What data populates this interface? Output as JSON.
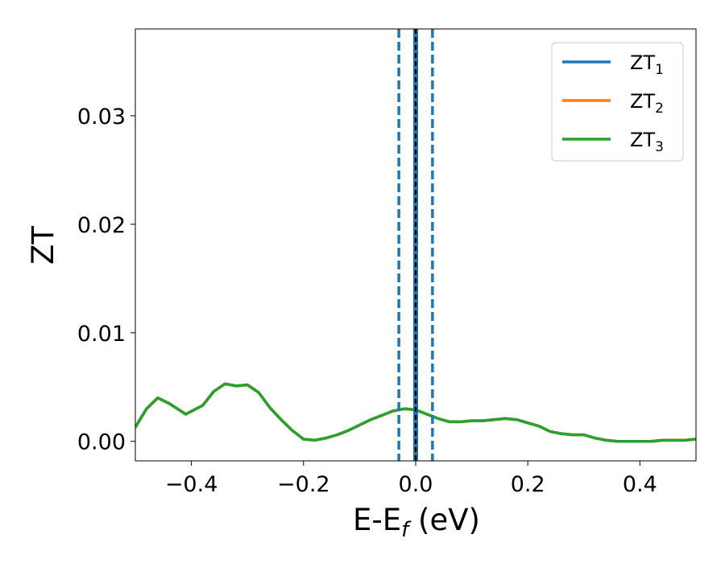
{
  "chart_data": {
    "type": "line",
    "title": "",
    "xlabel": {
      "main": "E-E",
      "sub": "f",
      "unit": " (eV)"
    },
    "ylabel": "ZT",
    "xlim": [
      -0.5,
      0.5
    ],
    "ylim": [
      -0.0018,
      0.038
    ],
    "xticks": [
      {
        "value": -0.4,
        "label": "−0.4"
      },
      {
        "value": -0.2,
        "label": "−0.2"
      },
      {
        "value": 0.0,
        "label": "0.0"
      },
      {
        "value": 0.2,
        "label": "0.2"
      },
      {
        "value": 0.4,
        "label": "0.4"
      }
    ],
    "yticks": [
      {
        "value": 0.0,
        "label": "0.00"
      },
      {
        "value": 0.01,
        "label": "0.01"
      },
      {
        "value": 0.02,
        "label": "0.02"
      },
      {
        "value": 0.03,
        "label": "0.03"
      }
    ],
    "grid": false,
    "legend_position": "top-right",
    "legend": [
      {
        "base": "ZT",
        "sub": "1",
        "color": "#1f77b4"
      },
      {
        "base": "ZT",
        "sub": "2",
        "color": "#ff7f0e"
      },
      {
        "base": "ZT",
        "sub": "3",
        "color": "#2ca02c"
      }
    ],
    "x": [
      -0.5,
      -0.48,
      -0.46,
      -0.44,
      -0.41,
      -0.38,
      -0.36,
      -0.34,
      -0.32,
      -0.3,
      -0.28,
      -0.26,
      -0.24,
      -0.22,
      -0.2,
      -0.18,
      -0.16,
      -0.14,
      -0.12,
      -0.1,
      -0.08,
      -0.06,
      -0.04,
      -0.02,
      0.0,
      0.02,
      0.04,
      0.06,
      0.08,
      0.1,
      0.12,
      0.14,
      0.16,
      0.18,
      0.2,
      0.22,
      0.24,
      0.26,
      0.28,
      0.3,
      0.32,
      0.34,
      0.36,
      0.38,
      0.4,
      0.42,
      0.44,
      0.46,
      0.48,
      0.5
    ],
    "series": [
      {
        "name": "ZT₁",
        "color": "#1f77b4",
        "values": [
          0.0013,
          0.003,
          0.004,
          0.0035,
          0.0025,
          0.0033,
          0.0046,
          0.0053,
          0.0051,
          0.0052,
          0.0045,
          0.0031,
          0.002,
          0.001,
          0.0002,
          0.0001,
          0.0003,
          0.0006,
          0.001,
          0.0015,
          0.002,
          0.0024,
          0.0028,
          0.003,
          0.0029,
          0.0025,
          0.0021,
          0.0018,
          0.0018,
          0.0019,
          0.0019,
          0.002,
          0.0021,
          0.002,
          0.0017,
          0.0014,
          0.0009,
          0.0007,
          0.0006,
          0.0006,
          0.0003,
          0.0001,
          0.0,
          0.0,
          0.0,
          0.0,
          0.0001,
          0.0001,
          0.0001,
          0.0002
        ]
      },
      {
        "name": "ZT₂",
        "color": "#ff7f0e",
        "values": [
          0.0013,
          0.003,
          0.004,
          0.0035,
          0.0025,
          0.0033,
          0.0046,
          0.0053,
          0.0051,
          0.0052,
          0.0045,
          0.0031,
          0.002,
          0.001,
          0.0002,
          0.0001,
          0.0003,
          0.0006,
          0.001,
          0.0015,
          0.002,
          0.0024,
          0.0028,
          0.003,
          0.0029,
          0.0025,
          0.0021,
          0.0018,
          0.0018,
          0.0019,
          0.0019,
          0.002,
          0.0021,
          0.002,
          0.0017,
          0.0014,
          0.0009,
          0.0007,
          0.0006,
          0.0006,
          0.0003,
          0.0001,
          0.0,
          0.0,
          0.0,
          0.0,
          0.0001,
          0.0001,
          0.0001,
          0.0002
        ]
      },
      {
        "name": "ZT₃",
        "color": "#2ca02c",
        "values": [
          0.0013,
          0.003,
          0.004,
          0.0035,
          0.0025,
          0.0033,
          0.0046,
          0.0053,
          0.0051,
          0.0052,
          0.0045,
          0.0031,
          0.002,
          0.001,
          0.0002,
          0.0001,
          0.0003,
          0.0006,
          0.001,
          0.0015,
          0.002,
          0.0024,
          0.0028,
          0.003,
          0.0029,
          0.0025,
          0.0021,
          0.0018,
          0.0018,
          0.0019,
          0.0019,
          0.002,
          0.0021,
          0.002,
          0.0017,
          0.0014,
          0.0009,
          0.0007,
          0.0006,
          0.0006,
          0.0003,
          0.0001,
          0.0,
          0.0,
          0.0,
          0.0,
          0.0001,
          0.0001,
          0.0001,
          0.0002
        ]
      }
    ],
    "vlines": [
      {
        "x": -0.03,
        "style": "dashed",
        "color": "#1f77b4"
      },
      {
        "x": 0.03,
        "style": "dashed",
        "color": "#1f77b4"
      },
      {
        "x": 0.0,
        "style": "solid",
        "color": "#1f77b4"
      },
      {
        "x": 0.0,
        "style": "dashed",
        "color": "#000000"
      }
    ]
  }
}
